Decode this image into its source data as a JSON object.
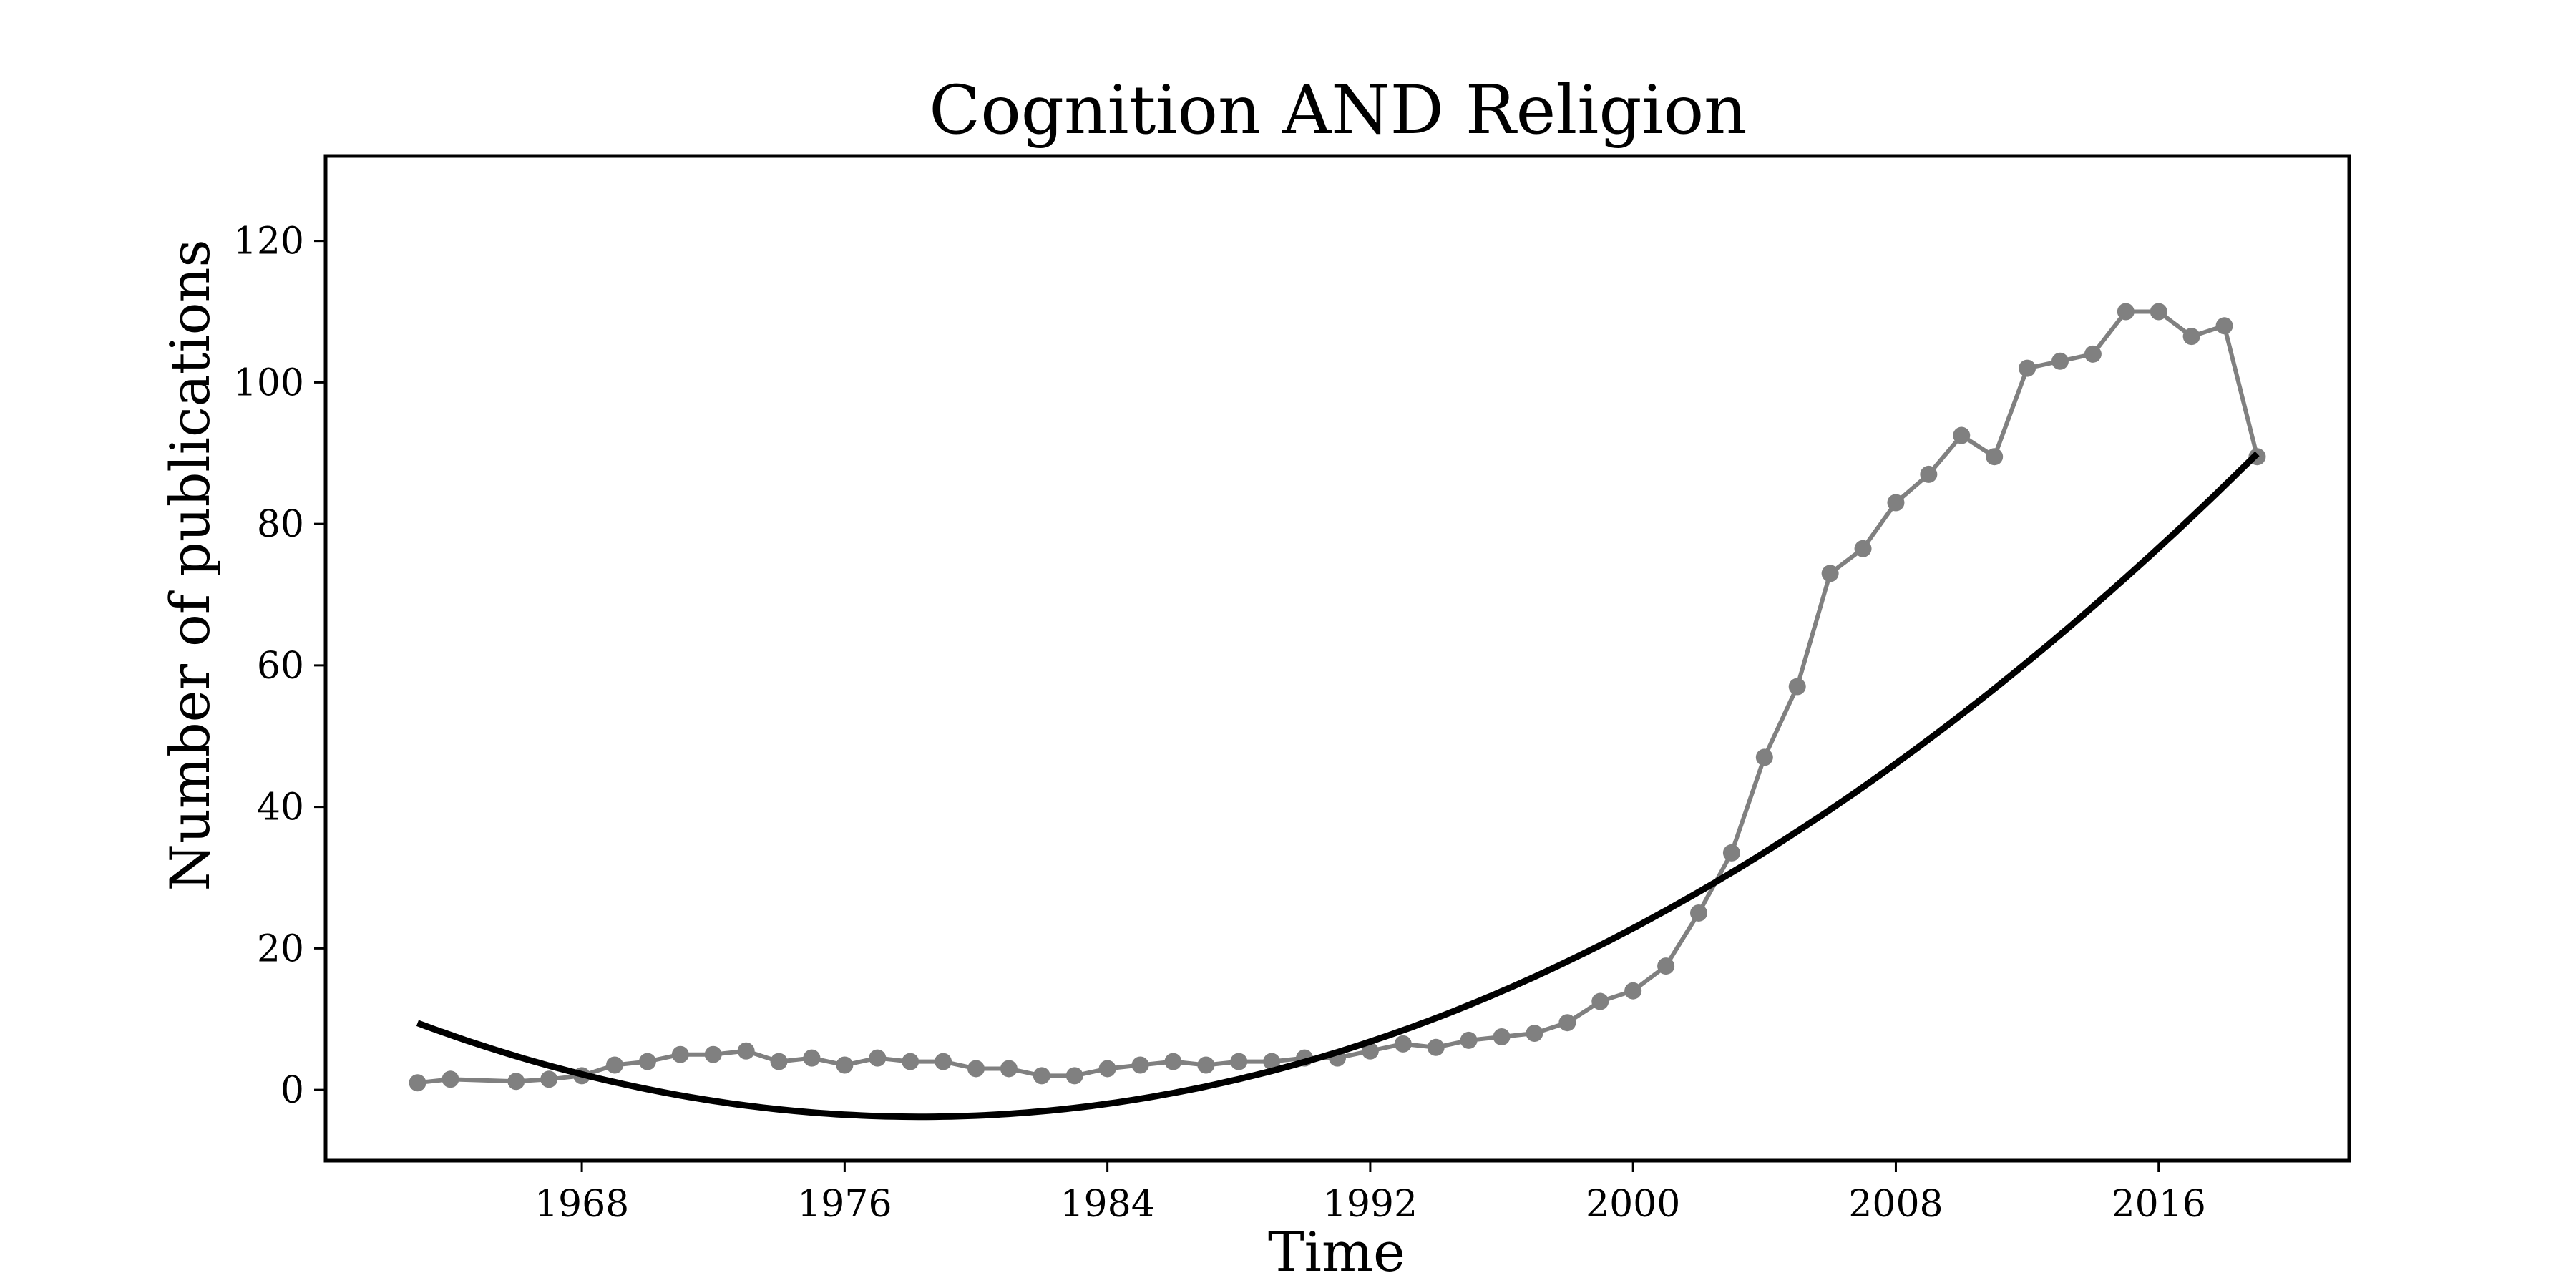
{
  "chart_data": {
    "type": "line",
    "title": "Cognition AND Religion",
    "xlabel": "Time",
    "ylabel": "Number of publications",
    "xlim": [
      1960.2,
      2021.8
    ],
    "ylim": [
      -10,
      132
    ],
    "xticks": [
      1968,
      1976,
      1984,
      1992,
      2000,
      2008,
      2016
    ],
    "yticks": [
      0,
      20,
      40,
      60,
      80,
      100,
      120
    ],
    "grid": false,
    "legend": "none",
    "series": [
      {
        "kind": "observed",
        "color": "#808080",
        "marker": "circle",
        "x": [
          1963,
          1964,
          1966,
          1967,
          1968,
          1969,
          1970,
          1971,
          1972,
          1973,
          1974,
          1975,
          1976,
          1977,
          1978,
          1979,
          1980,
          1981,
          1982,
          1983,
          1984,
          1985,
          1986,
          1987,
          1988,
          1989,
          1990,
          1991,
          1992,
          1993,
          1994,
          1995,
          1996,
          1997,
          1998,
          1999,
          2000,
          2001,
          2002,
          2003,
          2004,
          2005,
          2006,
          2007,
          2008,
          2009,
          2010,
          2011,
          2012,
          2013,
          2014,
          2015,
          2016,
          2017,
          2018,
          2019
        ],
        "y": [
          1,
          1.5,
          1.2,
          1.5,
          2,
          3.5,
          4,
          5,
          5,
          5.5,
          4,
          4.5,
          3.5,
          4.5,
          4,
          4,
          3,
          3,
          2,
          2,
          3,
          3.5,
          4,
          3.5,
          4,
          4,
          4.5,
          4.5,
          5.5,
          6.5,
          6,
          7,
          7.5,
          8,
          9.5,
          12.5,
          14,
          17.5,
          25,
          33.5,
          47,
          57,
          73,
          76.5,
          83,
          87,
          92.5,
          89.5,
          102,
          103,
          104,
          110,
          110,
          106.5,
          108,
          89.5
        ]
      },
      {
        "kind": "fit",
        "color": "#000000",
        "x_range": [
          1963,
          2019
        ],
        "vertex": [
          1978.3,
          -3.8
        ],
        "a": 0.05658
      }
    ]
  }
}
